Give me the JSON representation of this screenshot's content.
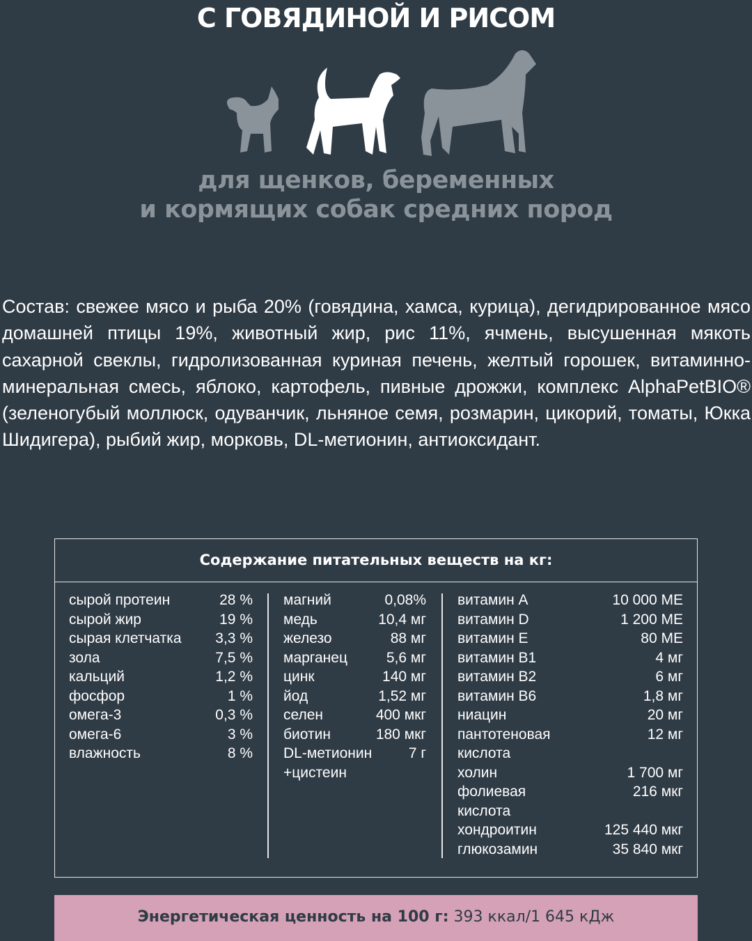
{
  "title": "С ГОВЯДИНОЙ И РИСОМ",
  "icons": {
    "small_dog": "small-dog-silhouette",
    "medium_dog": "medium-dog-silhouette-highlighted",
    "large_dog": "large-dog-silhouette"
  },
  "subtitle": {
    "line1": "для щенков, беременных",
    "line2": "и кормящих собак средних пород"
  },
  "composition": "Состав: свежее мясо и рыба 20% (говядина, хамса, курица), дегидрированное мясо домашней птицы 19%, животный жир, рис 11%, ячмень, высушенная мякоть сахарной свеклы, гидролизованная куриная печень, желтый горошек, витаминно-минеральная смесь, яблоко, картофель, пивные дрожжи, комплекс AlphaPetBIO® (зеленогубый моллюск, одуванчик, льняное семя, розмарин, цикорий, томаты, Юкка Шидигера), рыбий жир, морковь, DL-метионин, антиоксидант.",
  "table": {
    "header": "Содержание питательных веществ на кг:",
    "col1": [
      [
        "сырой протеин",
        "28 %"
      ],
      [
        "сырой жир",
        "19 %"
      ],
      [
        "сырая клетчатка",
        "3,3 %"
      ],
      [
        "зола",
        "7,5 %"
      ],
      [
        "кальций",
        "1,2 %"
      ],
      [
        "фосфор",
        "1 %"
      ],
      [
        "омега-3",
        "0,3 %"
      ],
      [
        "омега-6",
        "3 %"
      ],
      [
        "влажность",
        "8 %"
      ]
    ],
    "col2": [
      [
        "магний",
        "0,08%"
      ],
      [
        "медь",
        "10,4 мг"
      ],
      [
        "железо",
        "88 мг"
      ],
      [
        "марганец",
        "5,6 мг"
      ],
      [
        "цинк",
        "140 мг"
      ],
      [
        "йод",
        "1,52 мг"
      ],
      [
        "селен",
        "400 мкг"
      ],
      [
        "биотин",
        "180 мкг"
      ],
      [
        "DL-метионин",
        "7 г"
      ],
      [
        "+цистеин",
        ""
      ]
    ],
    "col3": [
      [
        "витамин А",
        "10 000 МЕ"
      ],
      [
        "витамин D",
        "1 200 МЕ"
      ],
      [
        "витамин Е",
        "80 МЕ"
      ],
      [
        "витамин В1",
        "4 мг"
      ],
      [
        "витамин В2",
        "6 мг"
      ],
      [
        "витамин В6",
        "1,8 мг"
      ],
      [
        "ниацин",
        "20 мг"
      ],
      [
        "пантотеновая",
        "12 мг"
      ],
      [
        "кислота",
        ""
      ],
      [
        "холин",
        "1 700 мг"
      ],
      [
        "фолиевая",
        "216 мкг"
      ],
      [
        "кислота",
        ""
      ],
      [
        "хондроитин",
        "125 440 мкг"
      ],
      [
        "глюкозамин",
        "35 840 мкг"
      ]
    ]
  },
  "energy": {
    "label": "Энергетическая ценность на 100 г:",
    "value": " 393 ккал/1 645 кДж"
  },
  "colors": {
    "background": "#2f3b45",
    "muted": "#8b939a",
    "energy_bar": "#d4a1b6"
  }
}
